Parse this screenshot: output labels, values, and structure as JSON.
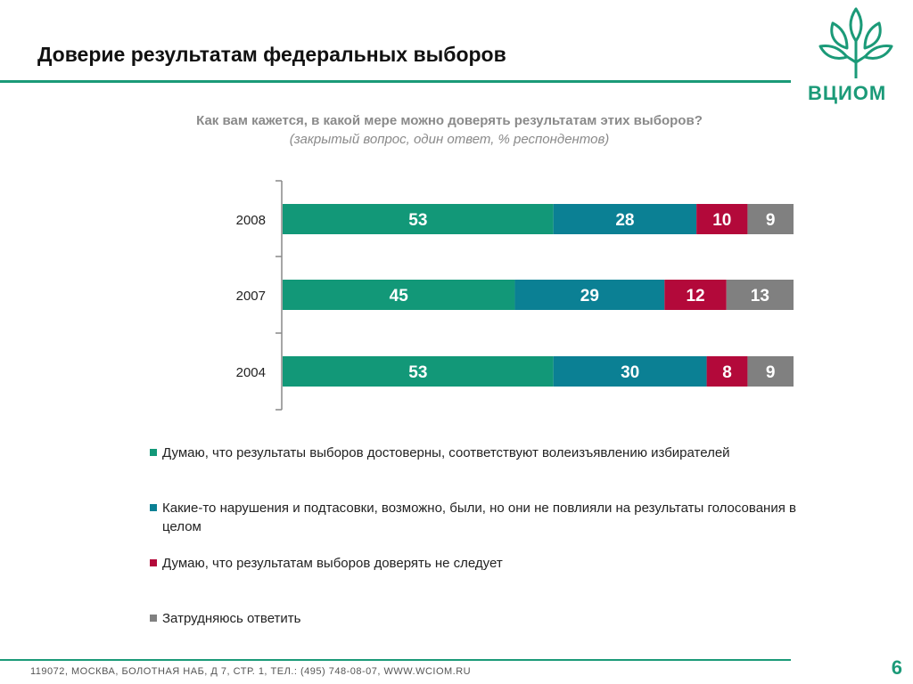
{
  "slide": {
    "title": "Доверие результатам федеральных выборов",
    "logo_text": "ВЦИОМ",
    "question": "Как вам кажется, в какой мере можно доверять результатам этих выборов?",
    "question_note": "(закрытый вопрос, один ответ, % респондентов)",
    "footer": "119072, МОСКВА, БОЛОТНАЯ НАБ, Д 7, СТР. 1, ТЕЛ.: (495) 748-08-07, WWW.WCIOM.RU",
    "page_number": "6",
    "accent_color": "#1b9a78"
  },
  "chart_data": {
    "type": "bar",
    "orientation": "horizontal",
    "stacked": true,
    "categories": [
      "2008",
      "2007",
      "2004"
    ],
    "series": [
      {
        "name": "Думаю, что результаты выборов достоверны, соответствуют волеизъявлению избирателей",
        "color": "#129878",
        "values": [
          53,
          45,
          53
        ]
      },
      {
        "name": "Какие-то нарушения и подтасовки, возможно, были, но они не повлияли на результаты голосования в целом",
        "color": "#0b8094",
        "values": [
          28,
          29,
          30
        ]
      },
      {
        "name": "Думаю, что результатам выборов доверять не следует",
        "color": "#b3093a",
        "values": [
          10,
          12,
          8
        ]
      },
      {
        "name": "Затрудняюсь ответить",
        "color": "#808080",
        "values": [
          9,
          13,
          9
        ]
      }
    ],
    "legend_position": "bottom",
    "grid": false
  },
  "legend": {
    "items": [
      {
        "label": "Думаю, что результаты выборов достоверны, соответствуют волеизъявлению избирателей",
        "color": "#129878"
      },
      {
        "label": "Какие-то нарушения и подтасовки, возможно, были, но они не повлияли на результаты голосования в целом",
        "color": "#0b8094"
      },
      {
        "label": "Думаю, что результатам выборов доверять не следует",
        "color": "#b3093a"
      },
      {
        "label": "Затрудняюсь ответить",
        "color": "#808080"
      }
    ]
  }
}
